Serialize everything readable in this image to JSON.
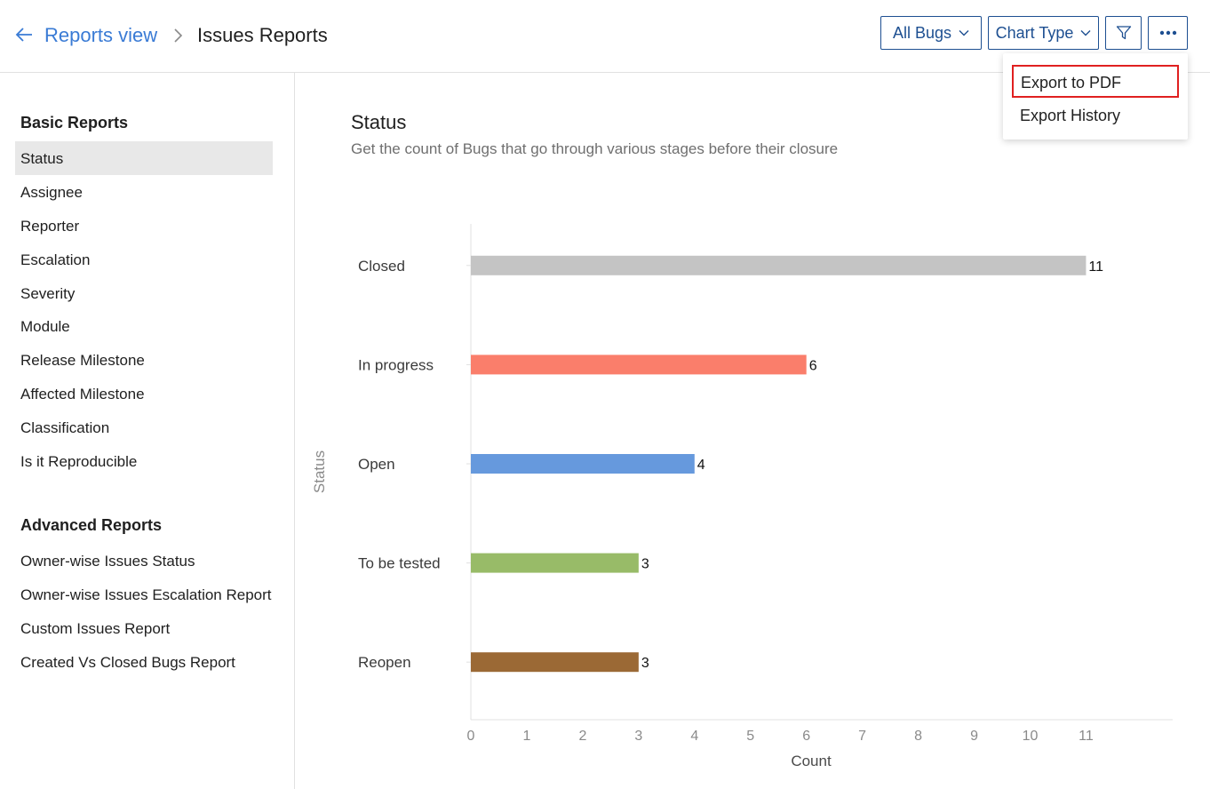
{
  "header": {
    "breadcrumb_link": "Reports view",
    "breadcrumb_current": "Issues Reports",
    "filter_label": "All Bugs",
    "chart_type_label": "Chart Type",
    "more_menu": {
      "items": [
        "Export to PDF",
        "Export History"
      ]
    }
  },
  "sidebar": {
    "basic_heading": "Basic Reports",
    "basic_items": [
      "Status",
      "Assignee",
      "Reporter",
      "Escalation",
      "Severity",
      "Module",
      "Release Milestone",
      "Affected Milestone",
      "Classification",
      "Is it Reproducible"
    ],
    "active_item": "Status",
    "advanced_heading": "Advanced Reports",
    "advanced_items": [
      "Owner-wise Issues Status",
      "Owner-wise Issues Escalation Report",
      "Custom Issues Report",
      "Created Vs Closed Bugs Report"
    ]
  },
  "main": {
    "title": "Status",
    "description": "Get the count of Bugs that go through various stages before their closure"
  },
  "colors": {
    "accent": "#1d4f91",
    "link": "#3a7bd5",
    "highlight_border": "#e02020"
  },
  "chart_data": {
    "type": "bar",
    "orientation": "horizontal",
    "categories": [
      "Closed",
      "In progress",
      "Open",
      "To be tested",
      "Reopen"
    ],
    "values": [
      11,
      6,
      4,
      3,
      3
    ],
    "colors": [
      "#c4c4c4",
      "#fa7e6b",
      "#6699dd",
      "#98bb68",
      "#9b6935"
    ],
    "xlabel": "Count",
    "ylabel": "Status",
    "xticks": [
      0,
      1,
      2,
      3,
      4,
      5,
      6,
      7,
      8,
      9,
      10,
      11
    ],
    "xlim": [
      0,
      12.55
    ],
    "grid": false
  }
}
